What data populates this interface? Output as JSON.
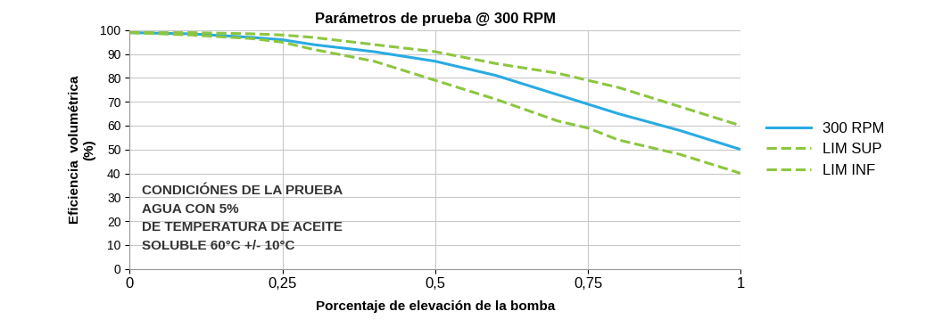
{
  "chart_data": {
    "type": "line",
    "title": "Parámetros de prueba @ 300 RPM",
    "x_label": "Porcentaje de elevación de la bomba",
    "y_label": "Eficiencia  volumétrica\n(%)",
    "annotations": [
      "CONDICIÓNES DE LA PRUEBA\nAGUA CON 5%\nDE TEMPERATURA DE ACEITE\nSOLUBLE 60°C +/- 10°C"
    ],
    "x": [
      0,
      0.1,
      0.2,
      0.25,
      0.3,
      0.4,
      0.5,
      0.6,
      0.7,
      0.75,
      0.8,
      0.9,
      1
    ],
    "series": [
      {
        "name": "300 RPM",
        "color": "#29abe2",
        "line_style": "solid",
        "values": [
          99,
          98.5,
          97,
          96,
          94,
          91,
          87,
          81,
          73,
          69,
          65,
          58,
          50
        ]
      },
      {
        "name": "LIM SUP",
        "color": "#8cc63f",
        "line_style": "dashed",
        "values": [
          99,
          99,
          98.5,
          98,
          97,
          94,
          91,
          86,
          82,
          79,
          76,
          68,
          60
        ]
      },
      {
        "name": "LIM INF",
        "color": "#8cc63f",
        "line_style": "dashed",
        "values": [
          99,
          98,
          96.5,
          95,
          92,
          87,
          79,
          71,
          62,
          59,
          54,
          48,
          40
        ]
      }
    ],
    "xlim": [
      0,
      1
    ],
    "xticks": [
      0,
      {
        "value": 0.25,
        "label": "0,25"
      },
      {
        "value": 0.5,
        "label": "0,5"
      },
      {
        "value": 0.75,
        "label": "0,75"
      },
      1
    ],
    "ylim": [
      0,
      100
    ],
    "yticks": [
      0,
      10,
      20,
      30,
      40,
      50,
      60,
      70,
      80,
      90,
      100
    ],
    "grid": true,
    "legend": "center left"
  }
}
